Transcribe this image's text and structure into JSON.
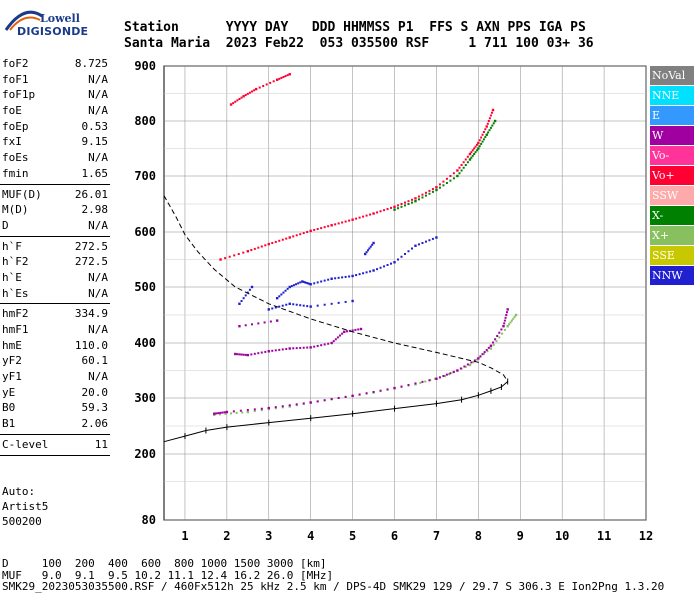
{
  "logo": {
    "line1": "Lowell",
    "line2": "DIGISONDE"
  },
  "header": {
    "line1": "Station      YYYY DAY   DDD HHMMSS P1  FFS S AXN PPS IGA PS",
    "line2": "Santa Maria  2023 Feb22  053 035500 RSF     1 711 100 03+ 36"
  },
  "params": [
    {
      "k": "foF2",
      "v": "8.725"
    },
    {
      "k": "foF1",
      "v": "N/A"
    },
    {
      "k": "foF1p",
      "v": "N/A"
    },
    {
      "k": "foE",
      "v": "N/A"
    },
    {
      "k": "foEp",
      "v": "0.53"
    },
    {
      "k": "fxI",
      "v": "9.15"
    },
    {
      "k": "foEs",
      "v": "N/A"
    },
    {
      "k": "fmin",
      "v": "1.65"
    },
    {
      "sep": true
    },
    {
      "k": "MUF(D)",
      "v": "26.01"
    },
    {
      "k": "M(D)",
      "v": "2.98"
    },
    {
      "k": "D",
      "v": "N/A"
    },
    {
      "sep": true
    },
    {
      "k": "h`F",
      "v": "272.5"
    },
    {
      "k": "h`F2",
      "v": "272.5"
    },
    {
      "k": "h`E",
      "v": "N/A"
    },
    {
      "k": "h`Es",
      "v": "N/A"
    },
    {
      "sep": true
    },
    {
      "k": "hmF2",
      "v": "334.9"
    },
    {
      "k": "hmF1",
      "v": "N/A"
    },
    {
      "k": "hmE",
      "v": "110.0"
    },
    {
      "k": "yF2",
      "v": "60.1"
    },
    {
      "k": "yF1",
      "v": "N/A"
    },
    {
      "k": "yE",
      "v": "20.0"
    },
    {
      "k": "B0",
      "v": "59.3"
    },
    {
      "k": "B1",
      "v": "2.06"
    },
    {
      "sep": true
    },
    {
      "k": "C-level",
      "v": "11"
    },
    {
      "sep": true
    }
  ],
  "auto": {
    "line1": "Auto:",
    "line2": "Artist5",
    "line3": "500200"
  },
  "legend": [
    {
      "label": "NoVal",
      "color": "#808080"
    },
    {
      "label": "NNE",
      "color": "#00e0ff"
    },
    {
      "label": "E",
      "color": "#3399ff"
    },
    {
      "label": "W",
      "color": "#a000a0"
    },
    {
      "label": "Vo-",
      "color": "#ff3399"
    },
    {
      "label": "Vo+",
      "color": "#ff0033"
    },
    {
      "label": "SSW",
      "color": "#ffaaaa"
    },
    {
      "label": "X-",
      "color": "#008000"
    },
    {
      "label": "X+",
      "color": "#88c060"
    },
    {
      "label": "SSE",
      "color": "#c8c800"
    },
    {
      "label": "NNW",
      "color": "#2020d0"
    }
  ],
  "footer": {
    "line1": "D     100  200  400  600  800 1000 1500 3000 [km]",
    "line2": "MUF   9.0  9.1  9.5 10.2 11.1 12.4 16.2 26.0 [MHz]",
    "line3": "SMK29_2023053035500.RSF / 460Fx512h 25 kHz 2.5 km / DPS-4D SMK29 129 / 29.7 S 306.3 E Ion2Png 1.3.20"
  },
  "chart_data": {
    "type": "scatter",
    "xlim": [
      0.5,
      12
    ],
    "ylim": [
      80,
      900
    ],
    "xticks": [
      1,
      2,
      3,
      4,
      5,
      6,
      7,
      8,
      9,
      10,
      11,
      12
    ],
    "yticks": [
      80,
      200,
      300,
      400,
      500,
      600,
      700,
      800,
      900
    ],
    "grid": true,
    "legend_position": "right",
    "series": [
      {
        "name": "Vo+",
        "color": "#ff0033",
        "points": [
          [
            1.85,
            550
          ],
          [
            2.5,
            565
          ],
          [
            3,
            578
          ],
          [
            3.5,
            590
          ],
          [
            4,
            602
          ],
          [
            4.5,
            612
          ],
          [
            5,
            622
          ],
          [
            5.5,
            633
          ],
          [
            6,
            645
          ],
          [
            6.5,
            660
          ],
          [
            7,
            680
          ],
          [
            7.5,
            710
          ],
          [
            7.8,
            740
          ],
          [
            8,
            760
          ],
          [
            8.2,
            790
          ],
          [
            8.35,
            820
          ],
          [
            2.1,
            830
          ],
          [
            2.4,
            845
          ],
          [
            2.7,
            858
          ],
          [
            3.2,
            875
          ],
          [
            3.5,
            885
          ]
        ]
      },
      {
        "name": "X-",
        "color": "#008000",
        "points": [
          [
            6,
            640
          ],
          [
            6.5,
            655
          ],
          [
            7,
            675
          ],
          [
            7.5,
            700
          ],
          [
            7.8,
            730
          ],
          [
            8,
            750
          ],
          [
            8.2,
            775
          ],
          [
            8.4,
            800
          ]
        ]
      },
      {
        "name": "X+",
        "color": "#88c060",
        "points": [
          [
            1.7,
            270
          ],
          [
            2.5,
            275
          ],
          [
            3.5,
            285
          ],
          [
            4.5,
            298
          ],
          [
            5.5,
            310
          ],
          [
            6.5,
            325
          ],
          [
            7.2,
            340
          ],
          [
            7.8,
            360
          ],
          [
            8.3,
            390
          ],
          [
            8.7,
            430
          ],
          [
            8.9,
            450
          ]
        ]
      },
      {
        "name": "W",
        "color": "#a000a0",
        "points": [
          [
            1.7,
            272
          ],
          [
            2,
            275
          ],
          [
            3,
            282
          ],
          [
            4,
            292
          ],
          [
            5,
            304
          ],
          [
            6,
            318
          ],
          [
            7,
            335
          ],
          [
            7.5,
            350
          ],
          [
            8,
            372
          ],
          [
            8.3,
            395
          ],
          [
            8.6,
            430
          ],
          [
            8.7,
            460
          ],
          [
            2.2,
            380
          ],
          [
            2.5,
            378
          ],
          [
            3,
            385
          ],
          [
            3.5,
            390
          ],
          [
            4,
            392
          ],
          [
            4.5,
            400
          ],
          [
            4.8,
            420
          ],
          [
            5.2,
            425
          ],
          [
            2.3,
            430
          ],
          [
            3.2,
            440
          ]
        ]
      },
      {
        "name": "NNW",
        "color": "#2020d0",
        "points": [
          [
            3.2,
            480
          ],
          [
            3.5,
            500
          ],
          [
            3.8,
            510
          ],
          [
            4,
            505
          ],
          [
            4.5,
            515
          ],
          [
            5,
            520
          ],
          [
            5.5,
            530
          ],
          [
            6,
            545
          ],
          [
            6.5,
            575
          ],
          [
            7,
            590
          ],
          [
            3,
            460
          ],
          [
            3.5,
            470
          ],
          [
            4,
            465
          ],
          [
            5,
            475
          ],
          [
            5.3,
            560
          ],
          [
            5.5,
            580
          ],
          [
            2.3,
            470
          ],
          [
            2.6,
            500
          ]
        ]
      }
    ],
    "profile_solid": [
      [
        0.5,
        222
      ],
      [
        1,
        232
      ],
      [
        1.5,
        242
      ],
      [
        2,
        248
      ],
      [
        3,
        256
      ],
      [
        4,
        264
      ],
      [
        5,
        272
      ],
      [
        6,
        281
      ],
      [
        7,
        290
      ],
      [
        7.6,
        297
      ],
      [
        8,
        305
      ],
      [
        8.3,
        313
      ],
      [
        8.55,
        320
      ],
      [
        8.7,
        330
      ]
    ],
    "profile_dashed": [
      [
        0.5,
        665
      ],
      [
        0.8,
        625
      ],
      [
        1,
        595
      ],
      [
        1.3,
        565
      ],
      [
        1.7,
        532
      ],
      [
        2.2,
        500
      ],
      [
        3,
        470
      ],
      [
        4,
        443
      ],
      [
        5,
        420
      ],
      [
        6,
        400
      ],
      [
        7,
        383
      ],
      [
        7.6,
        372
      ],
      [
        8,
        365
      ],
      [
        8.3,
        355
      ],
      [
        8.6,
        342
      ],
      [
        8.7,
        330
      ]
    ]
  }
}
